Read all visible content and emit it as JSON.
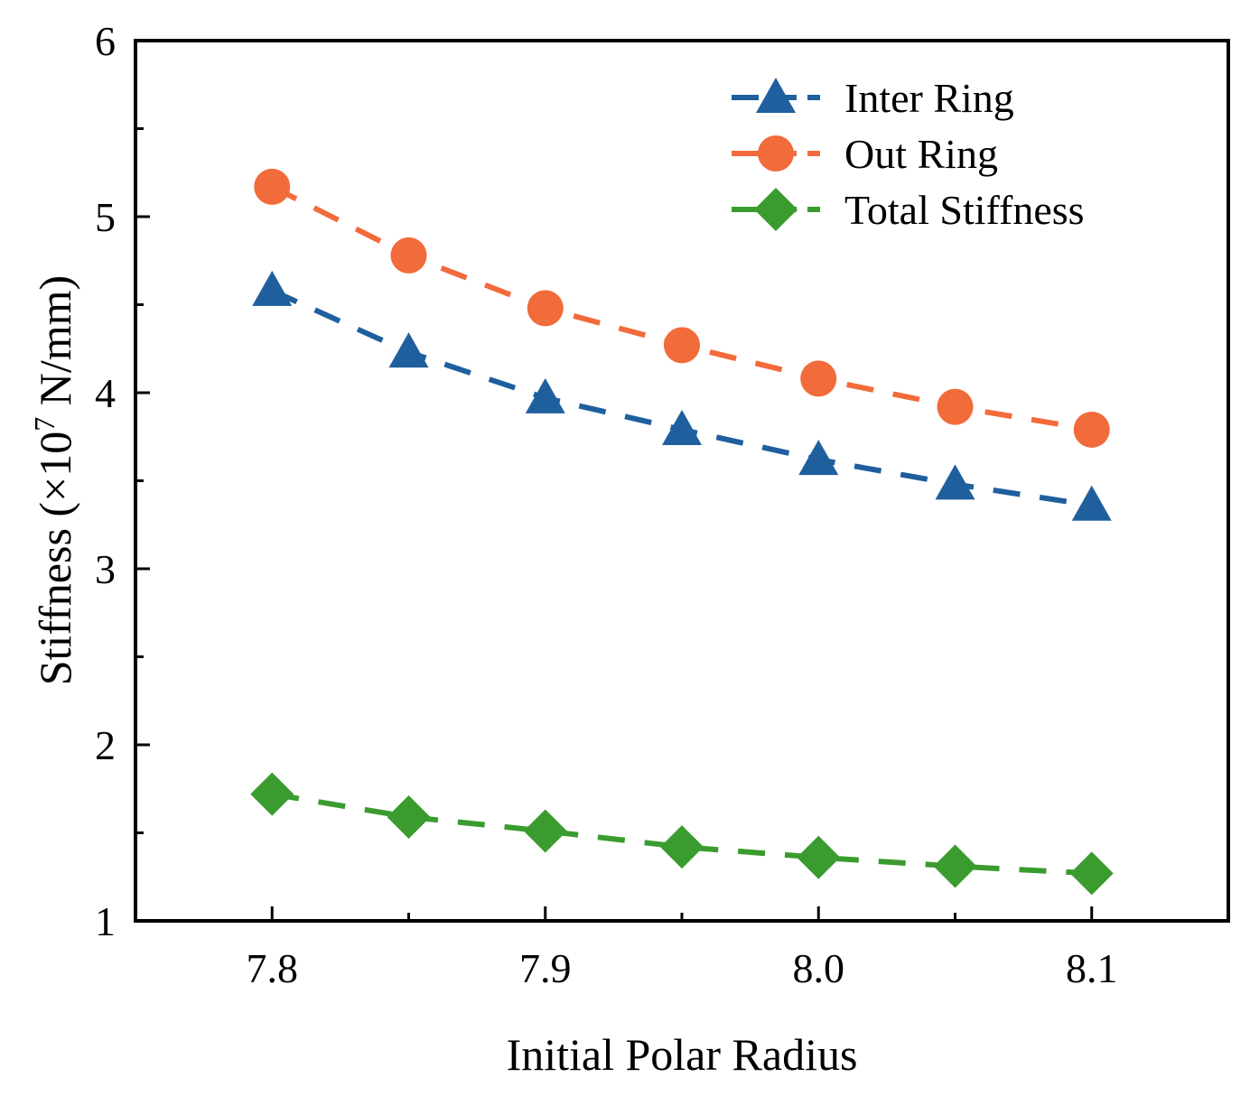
{
  "chart_data": {
    "type": "line",
    "title": "",
    "xlabel": "Initial Polar Radius",
    "ylabel_prefix": "Stiffness (×10",
    "ylabel_exponent": "7",
    "ylabel_suffix": " N/mm)",
    "xlim": [
      7.75,
      8.15
    ],
    "ylim": [
      1,
      6
    ],
    "x_ticks": [
      7.8,
      7.9,
      8.0,
      8.1
    ],
    "x_tick_labels": [
      "7.8",
      "7.9",
      "8.0",
      "8.1"
    ],
    "x_minor_ticks": [
      7.85,
      7.95,
      8.05
    ],
    "y_ticks": [
      1,
      2,
      3,
      4,
      5,
      6
    ],
    "y_tick_labels": [
      "1",
      "2",
      "3",
      "4",
      "5",
      "6"
    ],
    "y_minor_ticks": [
      1.5,
      2.5,
      3.5,
      4.5,
      5.5
    ],
    "grid": false,
    "legend_position": "top-right",
    "x": [
      7.8,
      7.85,
      7.9,
      7.95,
      8.0,
      8.05,
      8.1
    ],
    "series": [
      {
        "name": "Inter Ring",
        "marker": "triangle",
        "color": "#1f5f9e",
        "values": [
          4.58,
          4.23,
          3.97,
          3.79,
          3.62,
          3.48,
          3.36
        ]
      },
      {
        "name": "Out Ring",
        "marker": "circle",
        "color": "#f26b3a",
        "values": [
          5.17,
          4.78,
          4.48,
          4.27,
          4.08,
          3.92,
          3.79
        ]
      },
      {
        "name": "Total Stiffness",
        "marker": "diamond",
        "color": "#3a9c2e",
        "values": [
          1.72,
          1.59,
          1.51,
          1.42,
          1.36,
          1.31,
          1.27
        ]
      }
    ]
  }
}
